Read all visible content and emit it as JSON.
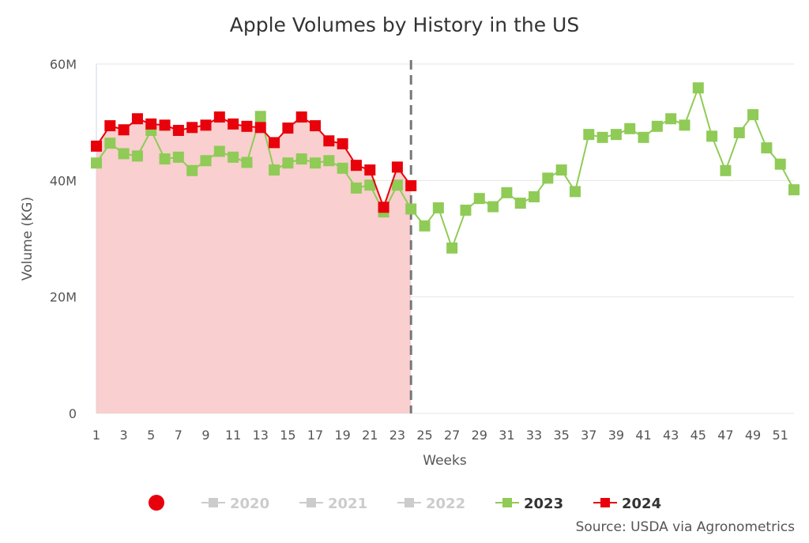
{
  "chart_data": {
    "type": "line",
    "title": "Apple Volumes by History in the US",
    "xlabel": "Weeks",
    "ylabel": "Volume (KG)",
    "xlim": [
      1,
      52
    ],
    "ylim": [
      0,
      60000000
    ],
    "yticks": [
      {
        "value": 0,
        "label": "0"
      },
      {
        "value": 20000000,
        "label": "20M"
      },
      {
        "value": 40000000,
        "label": "40M"
      },
      {
        "value": 60000000,
        "label": "60M"
      }
    ],
    "xticks": [
      1,
      3,
      5,
      7,
      9,
      11,
      13,
      15,
      17,
      19,
      21,
      23,
      25,
      27,
      29,
      31,
      33,
      35,
      37,
      39,
      41,
      43,
      45,
      47,
      49,
      51
    ],
    "grid": true,
    "current_week_marker": 24,
    "legend_placement": "bottom",
    "legend": [
      {
        "name": "2020",
        "visible": false,
        "color": "#cccccc"
      },
      {
        "name": "2021",
        "visible": false,
        "color": "#cccccc"
      },
      {
        "name": "2022",
        "visible": false,
        "color": "#cccccc"
      },
      {
        "name": "2023",
        "visible": true,
        "color": "#8fcb56"
      },
      {
        "name": "2024",
        "visible": true,
        "color": "#e8000b"
      }
    ],
    "series": [
      {
        "name": "2023",
        "color": "#8fcb56",
        "x_start": 1,
        "values": [
          43.0,
          46.4,
          44.6,
          44.2,
          48.6,
          43.7,
          44.0,
          41.7,
          43.4,
          45.0,
          44.0,
          43.1,
          51.0,
          41.8,
          43.0,
          43.7,
          43.0,
          43.4,
          42.1,
          38.7,
          39.2,
          34.6,
          39.2,
          35.1,
          32.2,
          35.3,
          28.4,
          34.9,
          36.9,
          35.5,
          37.9,
          36.1,
          37.2,
          40.4,
          41.8,
          38.1,
          47.9,
          47.4,
          47.9,
          48.9,
          47.4,
          49.3,
          50.6,
          49.5,
          55.9,
          47.6,
          41.7,
          48.2,
          51.3,
          45.6,
          42.8,
          38.4
        ],
        "unit": "M"
      },
      {
        "name": "2024",
        "color": "#e8000b",
        "fill": "#f9cccc",
        "x_start": 1,
        "values": [
          45.9,
          49.4,
          48.7,
          50.6,
          49.7,
          49.5,
          48.6,
          49.1,
          49.5,
          50.9,
          49.7,
          49.3,
          49.1,
          46.5,
          49.0,
          50.9,
          49.4,
          46.8,
          46.3,
          42.6,
          41.8,
          35.4,
          42.3,
          39.1
        ],
        "unit": "M"
      }
    ],
    "source": "Source: USDA via Agronometrics"
  }
}
